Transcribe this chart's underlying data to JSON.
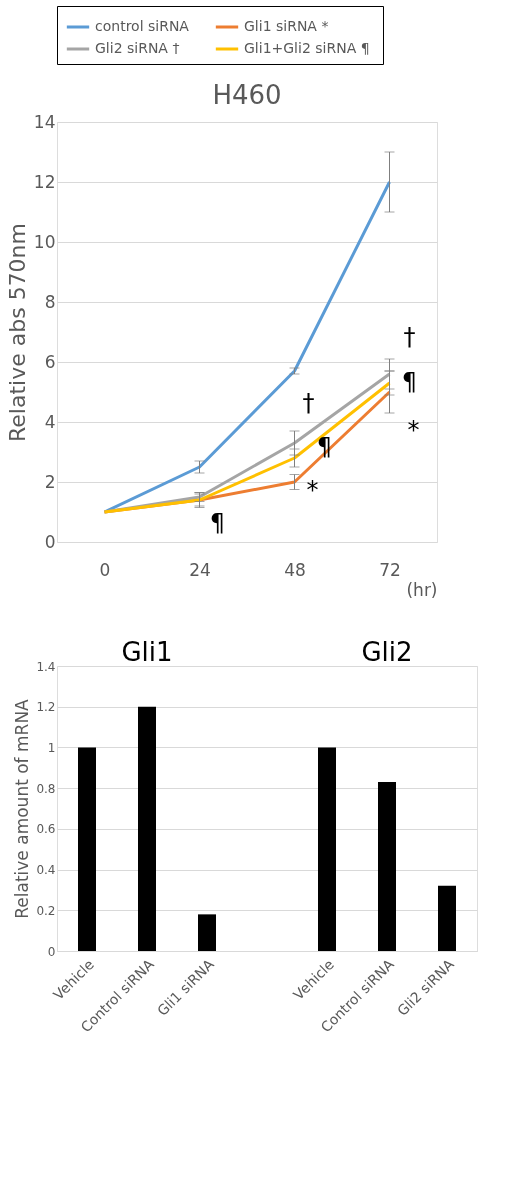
{
  "chart_data": [
    {
      "type": "line",
      "title": "H460",
      "xlabel": "(hr)",
      "ylabel": "Relative abs 570nm",
      "x": [
        0,
        24,
        48,
        72
      ],
      "xlim": [
        -12,
        84
      ],
      "xticks": [
        0,
        24,
        48,
        72
      ],
      "ylim": [
        0,
        14
      ],
      "yticks": [
        0,
        2,
        4,
        6,
        8,
        10,
        12,
        14
      ],
      "grid": "y",
      "legend": "top",
      "marker": "none",
      "line_style": "solid",
      "series": [
        {
          "name": "control siRNA",
          "color": "#5b9bd5",
          "values": [
            1,
            2.5,
            5.7,
            12
          ],
          "errors": [
            null,
            0.2,
            0.1,
            1.0
          ]
        },
        {
          "name": "Gli1 siRNA  *",
          "color": "#ed7d31",
          "values": [
            1,
            1.4,
            2.0,
            5.0
          ],
          "errors": [
            null,
            0.25,
            0.25,
            0.7
          ]
        },
        {
          "name": "Gli2 siRNA  †",
          "color": "#a5a5a5",
          "values": [
            1,
            1.5,
            3.3,
            5.6
          ],
          "errors": [
            null,
            0.15,
            0.4,
            0.5
          ]
        },
        {
          "name": "Gli1+Gli2 siRNA  ¶",
          "color": "#ffc000",
          "values": [
            1,
            1.4,
            2.8,
            5.3
          ],
          "errors": [
            null,
            0.2,
            0.3,
            0.4
          ]
        }
      ],
      "annotations": [
        {
          "text": "¶",
          "x": 24,
          "y": 1.4
        },
        {
          "text": "*",
          "x": 48,
          "y": 2.0
        },
        {
          "text": "†",
          "x": 48,
          "y": 3.3
        },
        {
          "text": "¶",
          "x": 48,
          "y": 2.8
        },
        {
          "text": "†",
          "x": 72,
          "y": 5.6
        },
        {
          "text": "¶",
          "x": 72,
          "y": 5.3
        },
        {
          "text": "*",
          "x": 72,
          "y": 5.0
        }
      ]
    },
    {
      "type": "bar",
      "ylabel": "Relative amount of mRNA",
      "categories": [
        "Vehicle",
        "Control siRNA",
        "Gli1 siRNA",
        null,
        "Vehicle",
        "Control siRNA",
        "Gli2 siRNA"
      ],
      "values": [
        1,
        1.2,
        0.18,
        null,
        1,
        0.83,
        0.32
      ],
      "color": "#000000",
      "ylim": [
        0,
        1.4
      ],
      "yticks": [
        0,
        0.2,
        0.4,
        0.6,
        0.8,
        1,
        1.2,
        1.4
      ],
      "grid": "y",
      "annotations": [
        "Gli1",
        "Gli2"
      ]
    }
  ]
}
